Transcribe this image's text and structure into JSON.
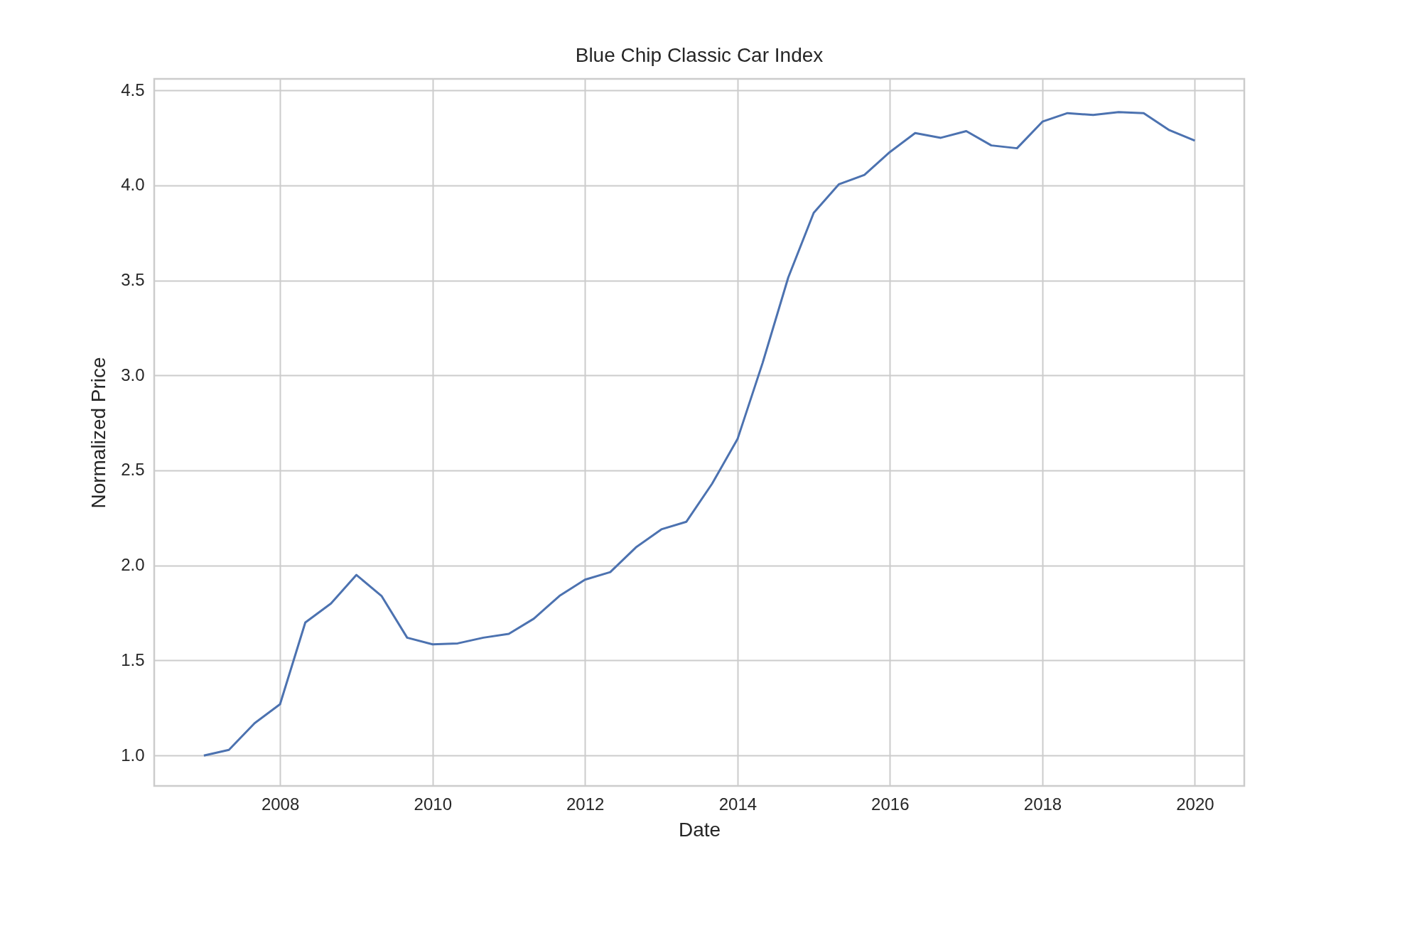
{
  "chart_data": {
    "type": "line",
    "title": "Blue Chip Classic Car Index",
    "xlabel": "Date",
    "ylabel": "Normalized Price",
    "x": [
      "2007-01",
      "2007-05",
      "2007-09",
      "2008-01",
      "2008-05",
      "2008-09",
      "2009-01",
      "2009-05",
      "2009-09",
      "2010-01",
      "2010-05",
      "2010-09",
      "2011-01",
      "2011-05",
      "2011-09",
      "2012-01",
      "2012-05",
      "2012-09",
      "2013-01",
      "2013-05",
      "2013-09",
      "2014-01",
      "2014-05",
      "2014-09",
      "2015-01",
      "2015-05",
      "2015-09",
      "2016-01",
      "2016-05",
      "2016-09",
      "2017-01",
      "2017-05",
      "2017-09",
      "2018-01",
      "2018-05",
      "2018-09",
      "2019-01",
      "2019-05",
      "2019-09",
      "2020-01"
    ],
    "series": [
      {
        "color": "#4c72b0",
        "values": [
          1.0,
          1.03,
          1.17,
          1.27,
          1.7,
          1.8,
          1.95,
          1.84,
          1.62,
          1.585,
          1.59,
          1.62,
          1.64,
          1.72,
          1.84,
          1.925,
          1.965,
          2.095,
          2.19,
          2.23,
          2.43,
          2.665,
          3.065,
          3.515,
          3.855,
          4.005,
          4.055,
          4.175,
          4.275,
          4.25,
          4.285,
          4.21,
          4.195,
          4.335,
          4.38,
          4.37,
          4.385,
          4.38,
          4.29,
          4.235
        ]
      }
    ],
    "xlim": [
      "2006-05-08",
      "2020-08-25"
    ],
    "xticks": [
      {
        "value": "2008",
        "label": "2008"
      },
      {
        "value": "2010",
        "label": "2010"
      },
      {
        "value": "2012",
        "label": "2012"
      },
      {
        "value": "2014",
        "label": "2014"
      },
      {
        "value": "2016",
        "label": "2016"
      },
      {
        "value": "2018",
        "label": "2018"
      },
      {
        "value": "2020",
        "label": "2020"
      }
    ],
    "ylim": [
      0.84,
      4.56
    ],
    "yticks": [
      {
        "value": 1,
        "label": "1.0"
      },
      {
        "value": 1.5,
        "label": "1.5"
      },
      {
        "value": 2,
        "label": "2.0"
      },
      {
        "value": 2.5,
        "label": "2.5"
      },
      {
        "value": 3,
        "label": "3.0"
      },
      {
        "value": 3.5,
        "label": "3.5"
      },
      {
        "value": 4,
        "label": "4.0"
      },
      {
        "value": 4.5,
        "label": "4.5"
      }
    ],
    "grid": true
  }
}
